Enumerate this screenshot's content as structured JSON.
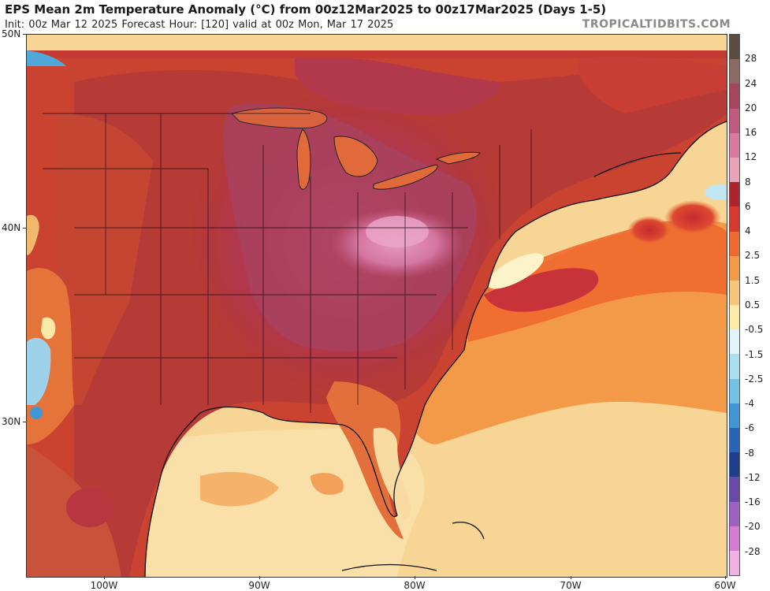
{
  "header": {
    "title": "EPS Mean 2m Temperature Anomaly (°C) from 00z12Mar2025 to 00z17Mar2025 (Days 1-5)",
    "subtitle": "Init: 00z Mar 12 2025   Forecast Hour: [120]   valid at 00z Mon, Mar 17 2025",
    "brand": "TROPICALTIDBITS.COM"
  },
  "map": {
    "lat_labels": [
      "50N",
      "40N",
      "30N"
    ],
    "lon_labels": [
      "100W",
      "90W",
      "80W",
      "70W",
      "60W"
    ],
    "extent": {
      "west": -105,
      "east": -60,
      "south": 22,
      "north": 50
    }
  },
  "legend": {
    "labels": [
      "28",
      "24",
      "20",
      "16",
      "12",
      "8",
      "6",
      "4",
      "2.5",
      "1.5",
      "0.5",
      "-0.5",
      "-1.5",
      "-2.5",
      "-4",
      "-6",
      "-8",
      "-12",
      "-16",
      "-20",
      "-28"
    ],
    "colors": [
      "#5a4c40",
      "#8a6a62",
      "#a4475e",
      "#c05a80",
      "#d97aa0",
      "#e9a3b8",
      "#b0232e",
      "#d8382e",
      "#ef6a2e",
      "#f39a48",
      "#f6c77a",
      "#fbeaa8",
      "#e2f4f8",
      "#a9dff0",
      "#72c2e8",
      "#3f97d8",
      "#2666b8",
      "#1f3f8c",
      "#6a4aa8",
      "#9d62c0",
      "#d57cd0",
      "#efb1e4"
    ]
  }
}
